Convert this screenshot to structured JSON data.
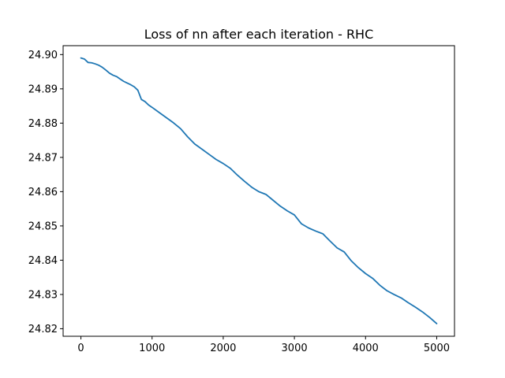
{
  "chart_data": {
    "type": "line",
    "title": "Loss of nn after each iteration - RHC",
    "xlabel": "",
    "ylabel": "",
    "xlim": [
      -250,
      5250
    ],
    "ylim": [
      24.8178,
      24.9026
    ],
    "xticks": [
      0,
      1000,
      2000,
      3000,
      4000,
      5000
    ],
    "xtick_labels": [
      "0",
      "1000",
      "2000",
      "3000",
      "4000",
      "5000"
    ],
    "yticks": [
      24.82,
      24.83,
      24.84,
      24.85,
      24.86,
      24.87,
      24.88,
      24.89,
      24.9
    ],
    "ytick_labels": [
      "24.82",
      "24.83",
      "24.84",
      "24.85",
      "24.86",
      "24.87",
      "24.88",
      "24.89",
      "24.90"
    ],
    "grid": false,
    "legend": "none",
    "series": [
      {
        "color": "#1f77b4",
        "x": [
          0,
          50,
          100,
          150,
          200,
          250,
          300,
          350,
          400,
          450,
          500,
          550,
          600,
          650,
          700,
          750,
          800,
          850,
          900,
          950,
          1000,
          1100,
          1200,
          1300,
          1400,
          1500,
          1600,
          1700,
          1800,
          1900,
          2000,
          2100,
          2200,
          2300,
          2400,
          2500,
          2600,
          2700,
          2800,
          2900,
          3000,
          3100,
          3200,
          3300,
          3400,
          3500,
          3600,
          3700,
          3800,
          3900,
          4000,
          4100,
          4200,
          4300,
          4400,
          4500,
          4600,
          4700,
          4800,
          4900,
          5000
        ],
        "y": [
          24.899,
          24.8987,
          24.8977,
          24.8976,
          24.8973,
          24.8969,
          24.8963,
          24.8955,
          24.8946,
          24.894,
          24.8936,
          24.8929,
          24.8922,
          24.8917,
          24.8912,
          24.8906,
          24.8896,
          24.8869,
          24.8863,
          24.8853,
          24.8846,
          24.8831,
          24.8816,
          24.8801,
          24.8784,
          24.876,
          24.8739,
          24.8724,
          24.8709,
          24.8694,
          24.8682,
          24.8668,
          24.8648,
          24.863,
          24.8613,
          24.86,
          24.8592,
          24.8575,
          24.8558,
          24.8544,
          24.8532,
          24.8506,
          24.8494,
          24.8485,
          24.8477,
          24.8456,
          24.8436,
          24.8424,
          24.8398,
          24.8378,
          24.8361,
          24.8347,
          24.8327,
          24.8311,
          24.83,
          24.829,
          24.8276,
          24.8263,
          24.8249,
          24.8233,
          24.8215
        ]
      }
    ]
  }
}
